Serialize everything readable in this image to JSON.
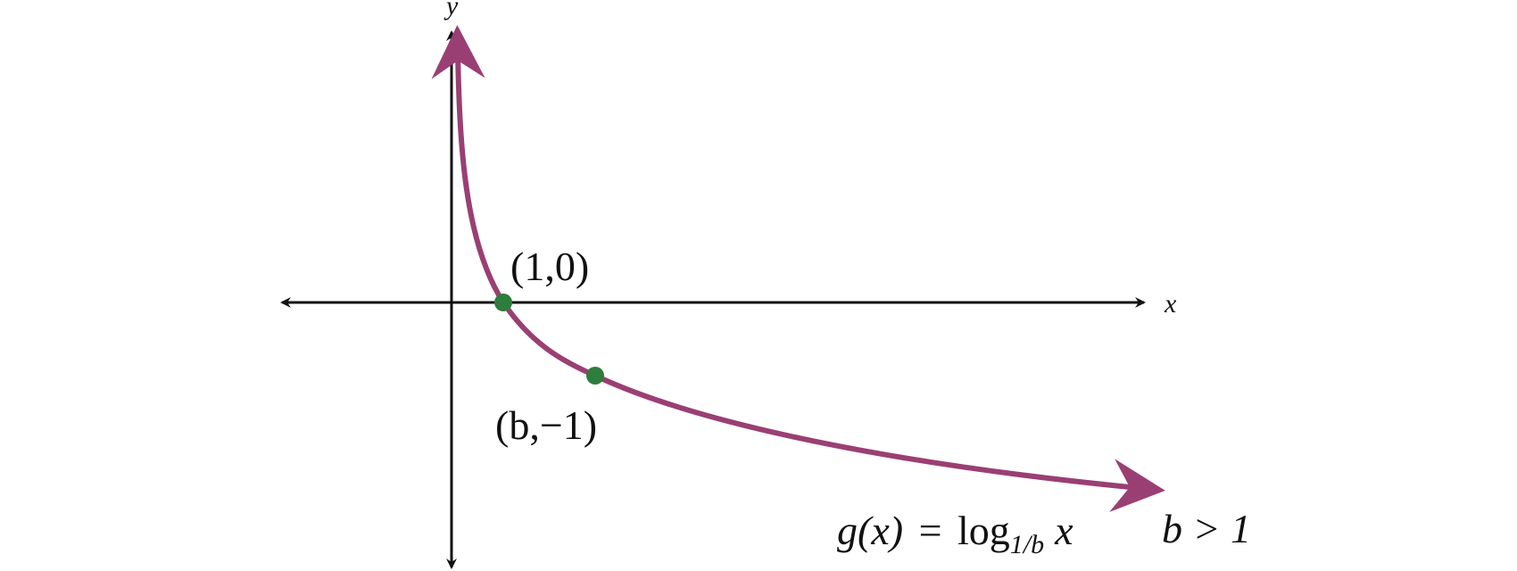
{
  "axes": {
    "x_label": "x",
    "y_label": "y"
  },
  "points": [
    {
      "label": "(1,0)"
    },
    {
      "label": "(b,−1)"
    }
  ],
  "equation": {
    "lhs": "g(x)",
    "relation": "=",
    "log": "log",
    "base": "1/b",
    "argument": "x"
  },
  "condition": "b > 1"
}
